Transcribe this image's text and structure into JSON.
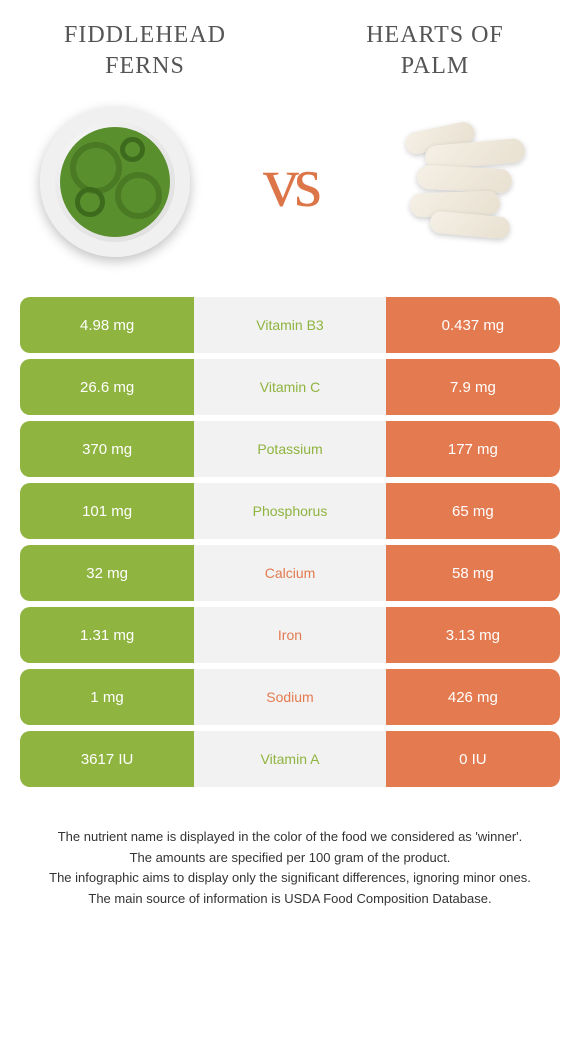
{
  "foods": {
    "left": "Fiddlehead ferns",
    "right": "Hearts of palm"
  },
  "vs_text": "vs",
  "colors": {
    "green": "#8fb43f",
    "orange": "#e47a4f",
    "mid_bg": "#f2f2f2"
  },
  "rows": [
    {
      "nutrient": "Vitamin B3",
      "left": "4.98 mg",
      "right": "0.437 mg",
      "winner": "left"
    },
    {
      "nutrient": "Vitamin C",
      "left": "26.6 mg",
      "right": "7.9 mg",
      "winner": "left"
    },
    {
      "nutrient": "Potassium",
      "left": "370 mg",
      "right": "177 mg",
      "winner": "left"
    },
    {
      "nutrient": "Phosphorus",
      "left": "101 mg",
      "right": "65 mg",
      "winner": "left"
    },
    {
      "nutrient": "Calcium",
      "left": "32 mg",
      "right": "58 mg",
      "winner": "right"
    },
    {
      "nutrient": "Iron",
      "left": "1.31 mg",
      "right": "3.13 mg",
      "winner": "right"
    },
    {
      "nutrient": "Sodium",
      "left": "1 mg",
      "right": "426 mg",
      "winner": "right"
    },
    {
      "nutrient": "Vitamin A",
      "left": "3617 IU",
      "right": "0 IU",
      "winner": "left"
    }
  ],
  "footer": {
    "line1": "The nutrient name is displayed in the color of the food we considered as 'winner'.",
    "line2": "The amounts are specified per 100 gram of the product.",
    "line3": "The infographic aims to display only the significant differences, ignoring minor ones.",
    "line4": "The main source of information is USDA Food Composition Database."
  }
}
